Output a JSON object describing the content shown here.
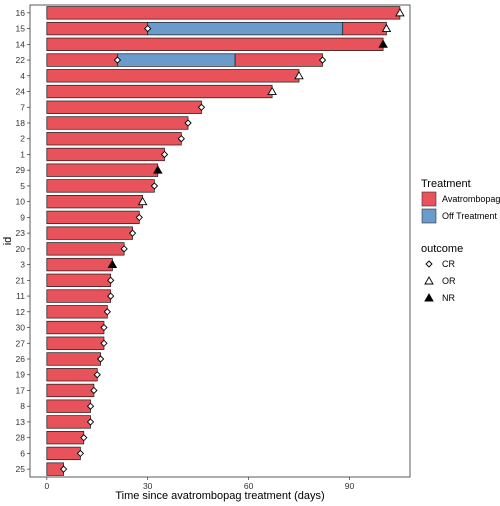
{
  "chart_data": {
    "type": "bar",
    "orientation": "horizontal",
    "xlabel": "Time since avatrombopag treatment (days)",
    "ylabel": "id",
    "xlim": [
      -5,
      108
    ],
    "xticks": [
      0,
      30,
      60,
      90
    ],
    "grid": false,
    "legend_placement": "right",
    "colors": {
      "Avatrombopag": "#E8525A",
      "Off Treatment": "#6A9BCB"
    },
    "categories": [
      "16",
      "15",
      "14",
      "22",
      "4",
      "24",
      "7",
      "18",
      "2",
      "1",
      "29",
      "5",
      "10",
      "9",
      "23",
      "20",
      "3",
      "21",
      "11",
      "12",
      "30",
      "27",
      "26",
      "19",
      "17",
      "8",
      "13",
      "28",
      "6",
      "25"
    ],
    "segments": [
      {
        "id": "16",
        "start": 0,
        "end": 105,
        "treatment": "Avatrombopag"
      },
      {
        "id": "15",
        "start": 0,
        "end": 30,
        "treatment": "Avatrombopag"
      },
      {
        "id": "15",
        "start": 30,
        "end": 88,
        "treatment": "Off Treatment"
      },
      {
        "id": "15",
        "start": 88,
        "end": 101,
        "treatment": "Avatrombopag"
      },
      {
        "id": "14",
        "start": 0,
        "end": 100,
        "treatment": "Avatrombopag"
      },
      {
        "id": "22",
        "start": 0,
        "end": 21,
        "treatment": "Avatrombopag"
      },
      {
        "id": "22",
        "start": 21,
        "end": 56,
        "treatment": "Off Treatment"
      },
      {
        "id": "22",
        "start": 56,
        "end": 82,
        "treatment": "Avatrombopag"
      },
      {
        "id": "4",
        "start": 0,
        "end": 75,
        "treatment": "Avatrombopag"
      },
      {
        "id": "24",
        "start": 0,
        "end": 67,
        "treatment": "Avatrombopag"
      },
      {
        "id": "7",
        "start": 0,
        "end": 46,
        "treatment": "Avatrombopag"
      },
      {
        "id": "18",
        "start": 0,
        "end": 42,
        "treatment": "Avatrombopag"
      },
      {
        "id": "2",
        "start": 0,
        "end": 40,
        "treatment": "Avatrombopag"
      },
      {
        "id": "1",
        "start": 0,
        "end": 35,
        "treatment": "Avatrombopag"
      },
      {
        "id": "29",
        "start": 0,
        "end": 33,
        "treatment": "Avatrombopag"
      },
      {
        "id": "5",
        "start": 0,
        "end": 32,
        "treatment": "Avatrombopag"
      },
      {
        "id": "10",
        "start": 0,
        "end": 28.5,
        "treatment": "Avatrombopag"
      },
      {
        "id": "9",
        "start": 0,
        "end": 27.5,
        "treatment": "Avatrombopag"
      },
      {
        "id": "23",
        "start": 0,
        "end": 25.5,
        "treatment": "Avatrombopag"
      },
      {
        "id": "20",
        "start": 0,
        "end": 23,
        "treatment": "Avatrombopag"
      },
      {
        "id": "3",
        "start": 0,
        "end": 19.5,
        "treatment": "Avatrombopag"
      },
      {
        "id": "21",
        "start": 0,
        "end": 19,
        "treatment": "Avatrombopag"
      },
      {
        "id": "11",
        "start": 0,
        "end": 19,
        "treatment": "Avatrombopag"
      },
      {
        "id": "12",
        "start": 0,
        "end": 18,
        "treatment": "Avatrombopag"
      },
      {
        "id": "30",
        "start": 0,
        "end": 17,
        "treatment": "Avatrombopag"
      },
      {
        "id": "27",
        "start": 0,
        "end": 17,
        "treatment": "Avatrombopag"
      },
      {
        "id": "26",
        "start": 0,
        "end": 16,
        "treatment": "Avatrombopag"
      },
      {
        "id": "19",
        "start": 0,
        "end": 15,
        "treatment": "Avatrombopag"
      },
      {
        "id": "17",
        "start": 0,
        "end": 14,
        "treatment": "Avatrombopag"
      },
      {
        "id": "8",
        "start": 0,
        "end": 13,
        "treatment": "Avatrombopag"
      },
      {
        "id": "13",
        "start": 0,
        "end": 13,
        "treatment": "Avatrombopag"
      },
      {
        "id": "28",
        "start": 0,
        "end": 11,
        "treatment": "Avatrombopag"
      },
      {
        "id": "6",
        "start": 0,
        "end": 10,
        "treatment": "Avatrombopag"
      },
      {
        "id": "25",
        "start": 0,
        "end": 5,
        "treatment": "Avatrombopag"
      }
    ],
    "outcomes": [
      {
        "id": "16",
        "x": 105,
        "outcome": "OR"
      },
      {
        "id": "15",
        "x": 30,
        "outcome": "CR"
      },
      {
        "id": "15",
        "x": 101,
        "outcome": "OR"
      },
      {
        "id": "14",
        "x": 100,
        "outcome": "NR"
      },
      {
        "id": "22",
        "x": 21,
        "outcome": "CR"
      },
      {
        "id": "22",
        "x": 82,
        "outcome": "CR"
      },
      {
        "id": "4",
        "x": 75,
        "outcome": "OR"
      },
      {
        "id": "24",
        "x": 67,
        "outcome": "OR"
      },
      {
        "id": "7",
        "x": 46,
        "outcome": "CR"
      },
      {
        "id": "18",
        "x": 42,
        "outcome": "CR"
      },
      {
        "id": "2",
        "x": 40,
        "outcome": "CR"
      },
      {
        "id": "1",
        "x": 35,
        "outcome": "CR"
      },
      {
        "id": "29",
        "x": 33,
        "outcome": "NR"
      },
      {
        "id": "5",
        "x": 32,
        "outcome": "CR"
      },
      {
        "id": "10",
        "x": 28.5,
        "outcome": "OR"
      },
      {
        "id": "9",
        "x": 27.5,
        "outcome": "CR"
      },
      {
        "id": "23",
        "x": 25.5,
        "outcome": "CR"
      },
      {
        "id": "20",
        "x": 23,
        "outcome": "CR"
      },
      {
        "id": "3",
        "x": 19.5,
        "outcome": "NR"
      },
      {
        "id": "21",
        "x": 19,
        "outcome": "CR"
      },
      {
        "id": "11",
        "x": 19,
        "outcome": "CR"
      },
      {
        "id": "12",
        "x": 18,
        "outcome": "CR"
      },
      {
        "id": "30",
        "x": 17,
        "outcome": "CR"
      },
      {
        "id": "27",
        "x": 17,
        "outcome": "CR"
      },
      {
        "id": "26",
        "x": 16,
        "outcome": "CR"
      },
      {
        "id": "19",
        "x": 15,
        "outcome": "CR"
      },
      {
        "id": "17",
        "x": 14,
        "outcome": "CR"
      },
      {
        "id": "8",
        "x": 13,
        "outcome": "CR"
      },
      {
        "id": "13",
        "x": 13,
        "outcome": "CR"
      },
      {
        "id": "28",
        "x": 11,
        "outcome": "CR"
      },
      {
        "id": "6",
        "x": 10,
        "outcome": "CR"
      },
      {
        "id": "25",
        "x": 5,
        "outcome": "CR"
      }
    ],
    "legend": {
      "treatment_title": "Treatment",
      "treatment_items": [
        {
          "label": "Avatrombopag",
          "color": "#E8525A"
        },
        {
          "label": "Off Treatment",
          "color": "#6A9BCB"
        }
      ],
      "outcome_title": "outcome",
      "outcome_items": [
        {
          "label": "CR",
          "shape": "diamond-open"
        },
        {
          "label": "OR",
          "shape": "triangle-open"
        },
        {
          "label": "NR",
          "shape": "triangle-filled"
        }
      ]
    }
  }
}
